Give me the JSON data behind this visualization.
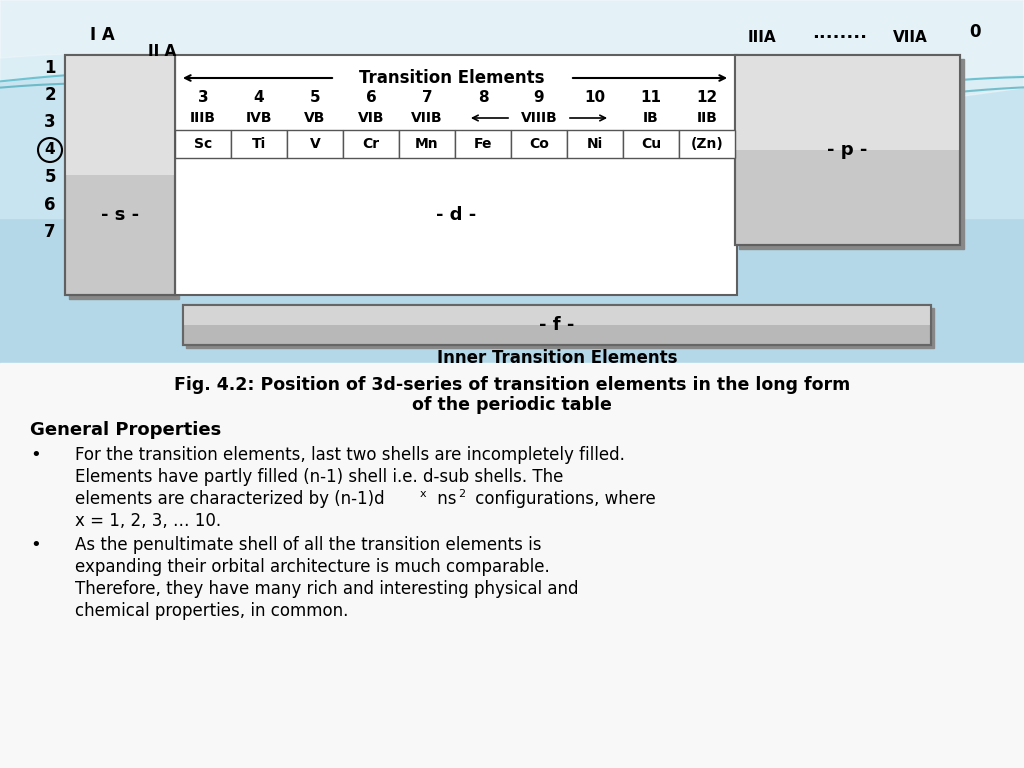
{
  "sky_color": "#a8d8e8",
  "white_bg": "#ffffff",
  "light_gray": "#f0f0f0",
  "s_block_color": "#c8c8c8",
  "p_block_color": "#c8c8c8",
  "d_block_color": "#ffffff",
  "f_block_color": "#b8b8b8",
  "period_labels": [
    "1",
    "2",
    "3",
    "4",
    "5",
    "6",
    "7"
  ],
  "group_numbers": [
    "3",
    "4",
    "5",
    "6",
    "7",
    "8",
    "9",
    "10",
    "11",
    "12"
  ],
  "elements": [
    "Sc",
    "Ti",
    "V",
    "Cr",
    "Mn",
    "Fe",
    "Co",
    "Ni",
    "Cu",
    "(Zn)"
  ],
  "ia_label": "I A",
  "iia_label": "II A",
  "iiia_label": "IIIA",
  "viia_label": "VIIA",
  "zero_label": "0",
  "trans_elem_label": "Transition Elements",
  "group_labels_left": [
    "IIIB",
    "IVB",
    "VB",
    "VIB",
    "VIIB"
  ],
  "viiib_label": "VIIIB",
  "group_labels_right": [
    "IB",
    "IIB"
  ],
  "s_label": "- s -",
  "d_label": "- d -",
  "p_label": "- p -",
  "f_label": "- f -",
  "inner_trans_label": "Inner Transition Elements",
  "fig_title_line1": "Fig. 4.2: Position of 3d-series of transition elements in the long form",
  "fig_title_line2": "of the periodic table",
  "general_prop_title": "General Properties",
  "b1l1": "For the transition elements, last two shells are incompletely filled.",
  "b1l2": "Elements have partly filled (n-1) shell i.e. d-sub shells. The",
  "b1l3a": "elements are characterized by (n-1)d",
  "b1l3b": " ns",
  "b1l3c": " configurations, where",
  "b1l4": "x = 1, 2, 3, … 10.",
  "b2l1": "As the penultimate shell of all the transition elements is",
  "b2l2": "expanding their orbital architecture is much comparable.",
  "b2l3": "Therefore, they have many rich and interesting physical and",
  "b2l4": "chemical properties, in common."
}
